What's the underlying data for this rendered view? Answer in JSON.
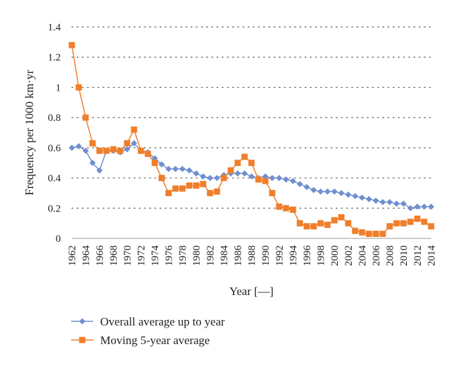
{
  "chart_data": {
    "type": "line",
    "xlabel": "Year [—]",
    "ylabel": "Frequency per 1000 km·yr",
    "ylim": [
      0,
      1.4
    ],
    "yticks": [
      "0",
      "0.2",
      "0.4",
      "0.6",
      "0.8",
      "1",
      "1.2",
      "1.4"
    ],
    "xlim": [
      1962,
      2014
    ],
    "xticks": [
      "1962",
      "1964",
      "1966",
      "1968",
      "1970",
      "1972",
      "1974",
      "1976",
      "1978",
      "1980",
      "1982",
      "1984",
      "1986",
      "1988",
      "1990",
      "1992",
      "1994",
      "1996",
      "1998",
      "2000",
      "2002",
      "2004",
      "2006",
      "2008",
      "2010",
      "2012",
      "2014"
    ],
    "grid": "horizontal-dotted",
    "legend_position": "bottom",
    "series": [
      {
        "name": "Overall average up to year",
        "color": "#6f8fd0",
        "marker": "diamond",
        "x": [
          1962,
          1963,
          1964,
          1965,
          1966,
          1967,
          1968,
          1969,
          1970,
          1971,
          1972,
          1973,
          1974,
          1975,
          1976,
          1977,
          1978,
          1979,
          1980,
          1981,
          1982,
          1983,
          1984,
          1985,
          1986,
          1987,
          1988,
          1989,
          1990,
          1991,
          1992,
          1993,
          1994,
          1995,
          1996,
          1997,
          1998,
          1999,
          2000,
          2001,
          2002,
          2003,
          2004,
          2005,
          2006,
          2007,
          2008,
          2009,
          2010,
          2011,
          2012,
          2013,
          2014
        ],
        "values": [
          0.6,
          0.61,
          0.58,
          0.5,
          0.45,
          0.58,
          0.58,
          0.57,
          0.59,
          0.63,
          0.58,
          0.57,
          0.53,
          0.49,
          0.46,
          0.46,
          0.46,
          0.45,
          0.43,
          0.41,
          0.4,
          0.4,
          0.42,
          0.43,
          0.43,
          0.43,
          0.41,
          0.4,
          0.41,
          0.4,
          0.4,
          0.39,
          0.38,
          0.36,
          0.34,
          0.32,
          0.31,
          0.31,
          0.31,
          0.3,
          0.29,
          0.28,
          0.27,
          0.26,
          0.25,
          0.24,
          0.24,
          0.23,
          0.23,
          0.2,
          0.21,
          0.21,
          0.21
        ]
      },
      {
        "name": "Moving 5-year average",
        "color": "#f07e2a",
        "marker": "square",
        "x": [
          1962,
          1963,
          1964,
          1965,
          1966,
          1967,
          1968,
          1969,
          1970,
          1971,
          1972,
          1973,
          1974,
          1975,
          1976,
          1977,
          1978,
          1979,
          1980,
          1981,
          1982,
          1983,
          1984,
          1985,
          1986,
          1987,
          1988,
          1989,
          1990,
          1991,
          1992,
          1993,
          1994,
          1995,
          1996,
          1997,
          1998,
          1999,
          2000,
          2001,
          2002,
          2003,
          2004,
          2005,
          2006,
          2007,
          2008,
          2009,
          2010,
          2011,
          2012,
          2013,
          2014
        ],
        "values": [
          1.28,
          1.0,
          0.8,
          0.63,
          0.58,
          0.58,
          0.59,
          0.58,
          0.63,
          0.72,
          0.58,
          0.56,
          0.5,
          0.4,
          0.3,
          0.33,
          0.33,
          0.35,
          0.35,
          0.36,
          0.3,
          0.31,
          0.4,
          0.45,
          0.5,
          0.54,
          0.5,
          0.39,
          0.38,
          0.3,
          0.21,
          0.2,
          0.19,
          0.1,
          0.08,
          0.08,
          0.1,
          0.09,
          0.12,
          0.14,
          0.1,
          0.05,
          0.04,
          0.03,
          0.03,
          0.03,
          0.08,
          0.1,
          0.1,
          0.11,
          0.13,
          0.11,
          0.08
        ]
      }
    ]
  }
}
